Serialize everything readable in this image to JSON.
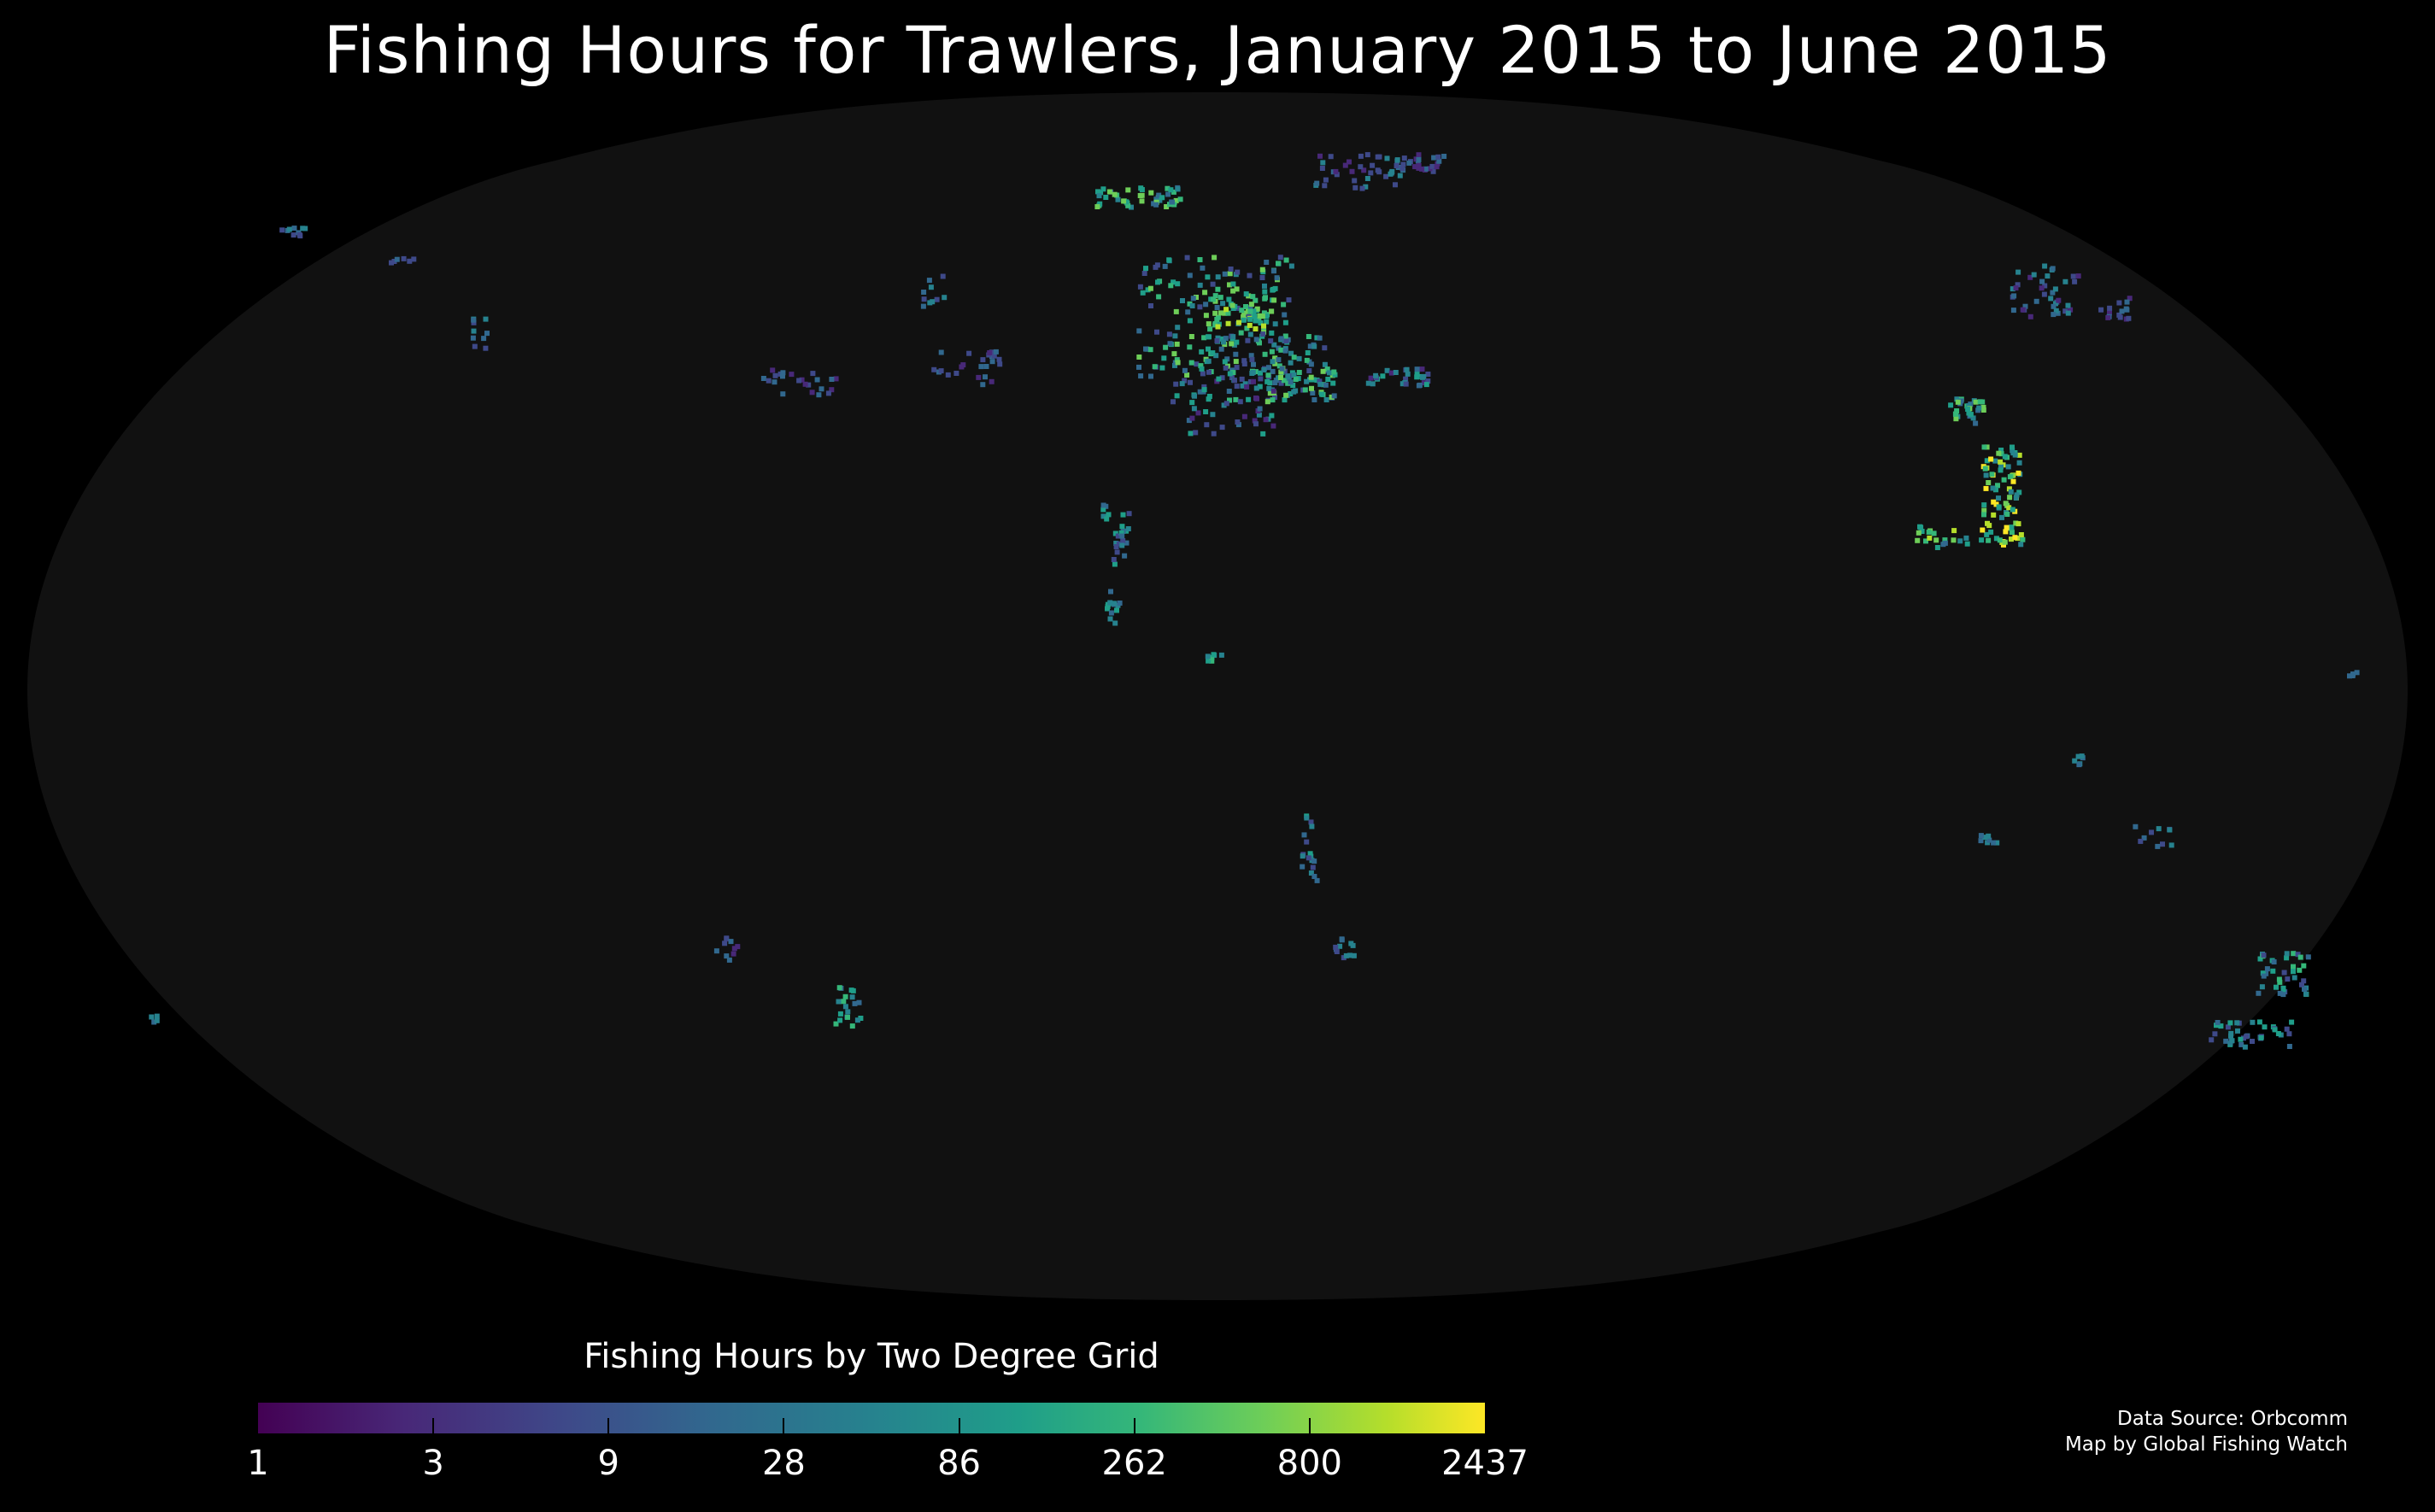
{
  "title": "Fishing Hours for Trawlers, January 2015 to June 2015",
  "colorbar": {
    "title": "Fishing Hours by Two Degree Grid",
    "ticks": [
      "1",
      "3",
      "9",
      "28",
      "86",
      "262",
      "800",
      "2437"
    ],
    "scale": "log",
    "colors": [
      "#440154",
      "#3e4989",
      "#26828e",
      "#35b779",
      "#fde725"
    ]
  },
  "credits": {
    "source": "Data Source: Orbcomm",
    "author": "Map by Global Fishing Watch"
  },
  "map": {
    "projection": "Robinson",
    "ocean_color": "#111111",
    "background_color": "#000000"
  }
}
